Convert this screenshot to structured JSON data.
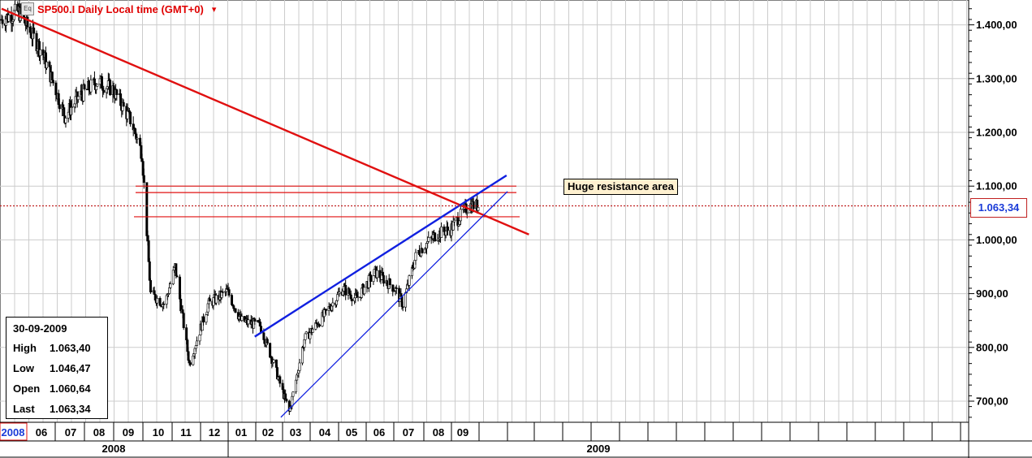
{
  "header": {
    "icon_name": "eq-chart-icon",
    "icon_text": "Eq",
    "title": "SP500.I Daily Local time (GMT+0)",
    "caret": "▾"
  },
  "info_box": {
    "date": "30-09-2009",
    "rows": [
      {
        "label": "High",
        "value": "1.063,40"
      },
      {
        "label": "Low",
        "value": "1.046,47"
      },
      {
        "label": "Open",
        "value": "1.060,64"
      },
      {
        "label": "Last",
        "value": "1.063,34"
      }
    ]
  },
  "annotation": "Huge resistance area",
  "current_price_label": "1.063,34",
  "colors": {
    "trendline_red": "#e01010",
    "trendline_blue": "#1020e0",
    "grid": "#cccccc",
    "up_candle": "#ffffff",
    "down_candle": "#000000",
    "price_flag_text": "#1a3bd8",
    "annotation_bg": "#fff1d0"
  },
  "chart_data": {
    "type": "candlestick",
    "instrument": "SP500.I",
    "timeframe": "Daily",
    "ylim": [
      650,
      1480
    ],
    "y_ticks": [
      700,
      800,
      900,
      1000,
      1100,
      1200,
      1300,
      1400
    ],
    "y_tick_labels": [
      "700,00",
      "800,00",
      "900,00",
      "1.000,00",
      "1.100,00",
      "1.200,00",
      "1.300,00",
      "1.400,00"
    ],
    "x_month_labels": [
      "2008",
      "06",
      "07",
      "08",
      "09",
      "10",
      "11",
      "12",
      "01",
      "02",
      "03",
      "04",
      "05",
      "06",
      "07",
      "08",
      "09"
    ],
    "x_year_labels": [
      "2008",
      "2009"
    ],
    "close_path": [
      {
        "date": "2008-05-01",
        "value": 1410
      },
      {
        "date": "2008-05-20",
        "value": 1425
      },
      {
        "date": "2008-06-15",
        "value": 1350
      },
      {
        "date": "2008-07-10",
        "value": 1230
      },
      {
        "date": "2008-07-25",
        "value": 1265
      },
      {
        "date": "2008-08-15",
        "value": 1295
      },
      {
        "date": "2008-09-01",
        "value": 1280
      },
      {
        "date": "2008-09-20",
        "value": 1220
      },
      {
        "date": "2008-10-01",
        "value": 1160
      },
      {
        "date": "2008-10-10",
        "value": 900
      },
      {
        "date": "2008-10-25",
        "value": 880
      },
      {
        "date": "2008-11-05",
        "value": 950
      },
      {
        "date": "2008-11-20",
        "value": 770
      },
      {
        "date": "2008-12-10",
        "value": 880
      },
      {
        "date": "2008-12-31",
        "value": 905
      },
      {
        "date": "2009-01-15",
        "value": 850
      },
      {
        "date": "2009-02-05",
        "value": 840
      },
      {
        "date": "2009-02-20",
        "value": 770
      },
      {
        "date": "2009-03-09",
        "value": 680
      },
      {
        "date": "2009-03-25",
        "value": 815
      },
      {
        "date": "2009-04-15",
        "value": 860
      },
      {
        "date": "2009-05-05",
        "value": 910
      },
      {
        "date": "2009-05-20",
        "value": 890
      },
      {
        "date": "2009-06-10",
        "value": 940
      },
      {
        "date": "2009-07-01",
        "value": 910
      },
      {
        "date": "2009-07-10",
        "value": 880
      },
      {
        "date": "2009-07-25",
        "value": 975
      },
      {
        "date": "2009-08-15",
        "value": 1010
      },
      {
        "date": "2009-08-31",
        "value": 1020
      },
      {
        "date": "2009-09-20",
        "value": 1065
      },
      {
        "date": "2009-09-30",
        "value": 1063.34
      }
    ],
    "trendlines": [
      {
        "name": "long-term-resistance",
        "color": "red",
        "from": {
          "date": "2008-05-01",
          "value": 1430
        },
        "to": {
          "date": "2009-11-25",
          "value": 1010
        }
      },
      {
        "name": "rising-channel-top",
        "color": "blue",
        "from": {
          "date": "2009-01-30",
          "value": 820
        },
        "to": {
          "date": "2009-10-31",
          "value": 1120
        }
      },
      {
        "name": "rising-channel-bottom",
        "color": "blue",
        "from": {
          "date": "2009-02-28",
          "value": 670
        },
        "to": {
          "date": "2009-11-01",
          "value": 1090
        }
      }
    ],
    "horizontal_lines": [
      1100,
      1088,
      1043
    ],
    "current_price": 1063.34
  }
}
